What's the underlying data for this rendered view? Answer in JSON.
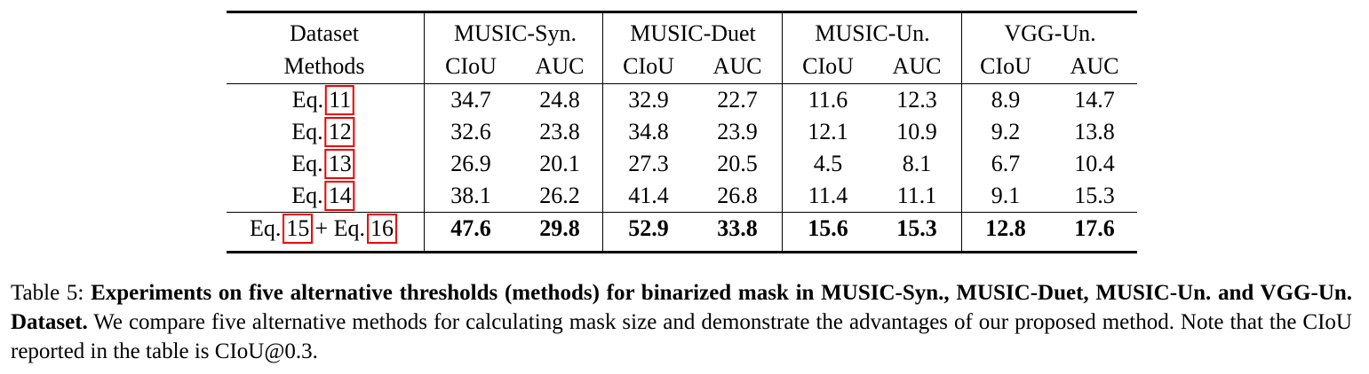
{
  "table": {
    "header": [
      "Dataset",
      "MUSIC-Syn.",
      "MUSIC-Duet",
      "MUSIC-Un.",
      "VGG-Un."
    ],
    "subheader": [
      "Methods",
      "CIoU",
      "AUC",
      "CIoU",
      "AUC",
      "CIoU",
      "AUC",
      "CIoU",
      "AUC"
    ],
    "rows": [
      {
        "method": [
          "Eq.",
          "11"
        ],
        "values": [
          34.7,
          24.8,
          32.9,
          22.7,
          11.6,
          12.3,
          8.9,
          14.7
        ]
      },
      {
        "method": [
          "Eq.",
          "12"
        ],
        "values": [
          32.6,
          23.8,
          34.8,
          23.9,
          12.1,
          10.9,
          9.2,
          13.8
        ]
      },
      {
        "method": [
          "Eq.",
          "13"
        ],
        "values": [
          26.9,
          20.1,
          27.3,
          20.5,
          4.5,
          8.1,
          6.7,
          10.4
        ]
      },
      {
        "method": [
          "Eq.",
          "14"
        ],
        "values": [
          38.1,
          26.2,
          41.4,
          26.8,
          11.4,
          11.1,
          9.1,
          15.3
        ]
      },
      {
        "method": [
          "Eq.",
          "15",
          "+ Eq.",
          "16"
        ],
        "values": [
          47.6,
          29.8,
          52.9,
          33.8,
          15.6,
          15.3,
          12.8,
          17.6
        ],
        "bold": true
      }
    ]
  },
  "caption": {
    "label": "Table 5:",
    "bold": "Experiments on five alternative thresholds (methods) for binarized mask in MUSIC-Syn., MUSIC-Duet, MUSIC-Un. and VGG-Un. Dataset.",
    "text": "We compare five alternative methods for calculating mask size and demonstrate the advantages of our proposed method. Note that the CIoU reported in the table is CIoU@0.3."
  }
}
